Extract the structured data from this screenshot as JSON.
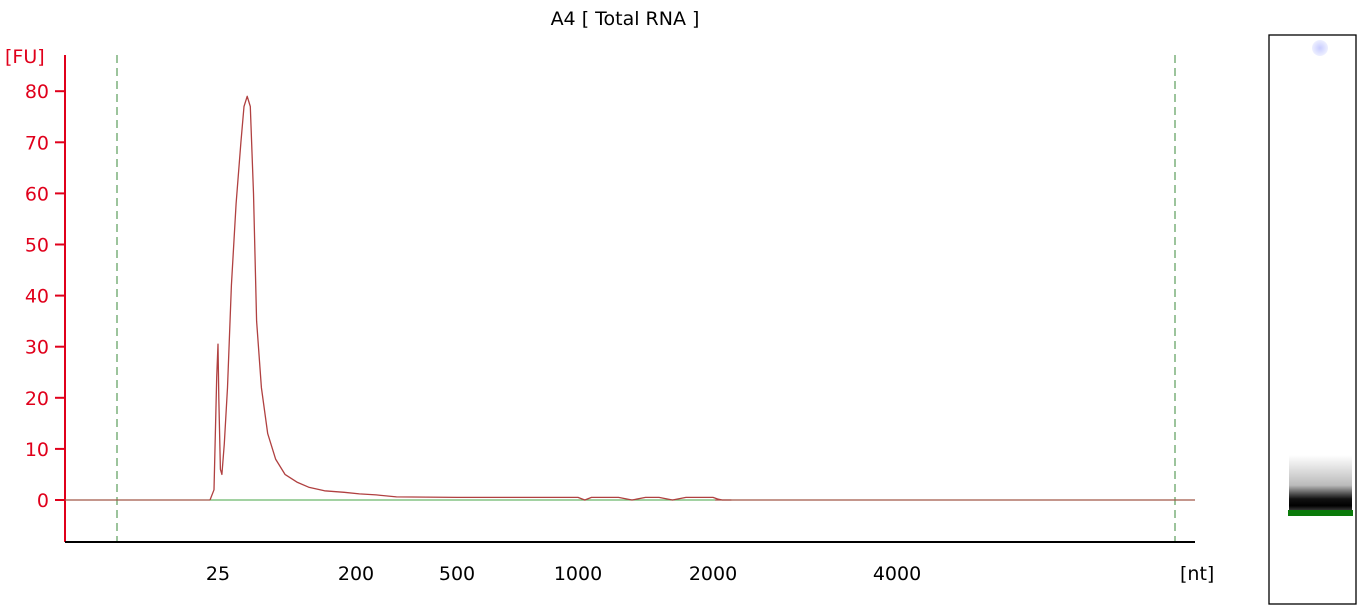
{
  "chart_data": {
    "type": "line",
    "title": "A4  [ Total RNA ]",
    "ylabel": "[FU]",
    "xlabel": "[nt]",
    "ylim": [
      -8,
      87
    ],
    "y_ticks": [
      0,
      10,
      20,
      30,
      40,
      50,
      60,
      70,
      80
    ],
    "x_ticks": [
      "25",
      "200",
      "500",
      "1000",
      "2000",
      "4000"
    ],
    "x_tick_positions_nt": [
      25,
      200,
      500,
      1000,
      2000,
      4000
    ],
    "x_calibration_nt": [
      [
        25,
        25
      ],
      [
        200,
        200
      ],
      [
        500,
        500
      ],
      [
        1000,
        1000
      ],
      [
        2000,
        2000
      ],
      [
        4000,
        4000
      ]
    ],
    "series": [
      {
        "values_x_nt": [
          19,
          22,
          24,
          25,
          26,
          28,
          30,
          33,
          37,
          42,
          48,
          54,
          58,
          62,
          66,
          70,
          74,
          80,
          88,
          98,
          110,
          125,
          140,
          160,
          185,
          210,
          260,
          320,
          500,
          1000,
          1050,
          1100,
          1200,
          1300,
          1400,
          1500,
          1600,
          1700,
          1800,
          1900,
          2000,
          2050,
          2100,
          2200
        ],
        "values_y": [
          0,
          2,
          24,
          30.5,
          20,
          6,
          5,
          11,
          22,
          42,
          58,
          70,
          77,
          79,
          77,
          60,
          35,
          22,
          13,
          8,
          5,
          3.5,
          2.5,
          1.8,
          1.5,
          1.2,
          1,
          0.6,
          0.5,
          0.5,
          0,
          0.5,
          0.5,
          0.5,
          0,
          0.5,
          0.5,
          0,
          0.5,
          0.5,
          0.5,
          0.2,
          0,
          0
        ]
      }
    ],
    "colors": {
      "axis": "#e0001b",
      "trace": "#b04040",
      "baseline": "#6ab86a",
      "marker": "#3a8a3a"
    }
  }
}
